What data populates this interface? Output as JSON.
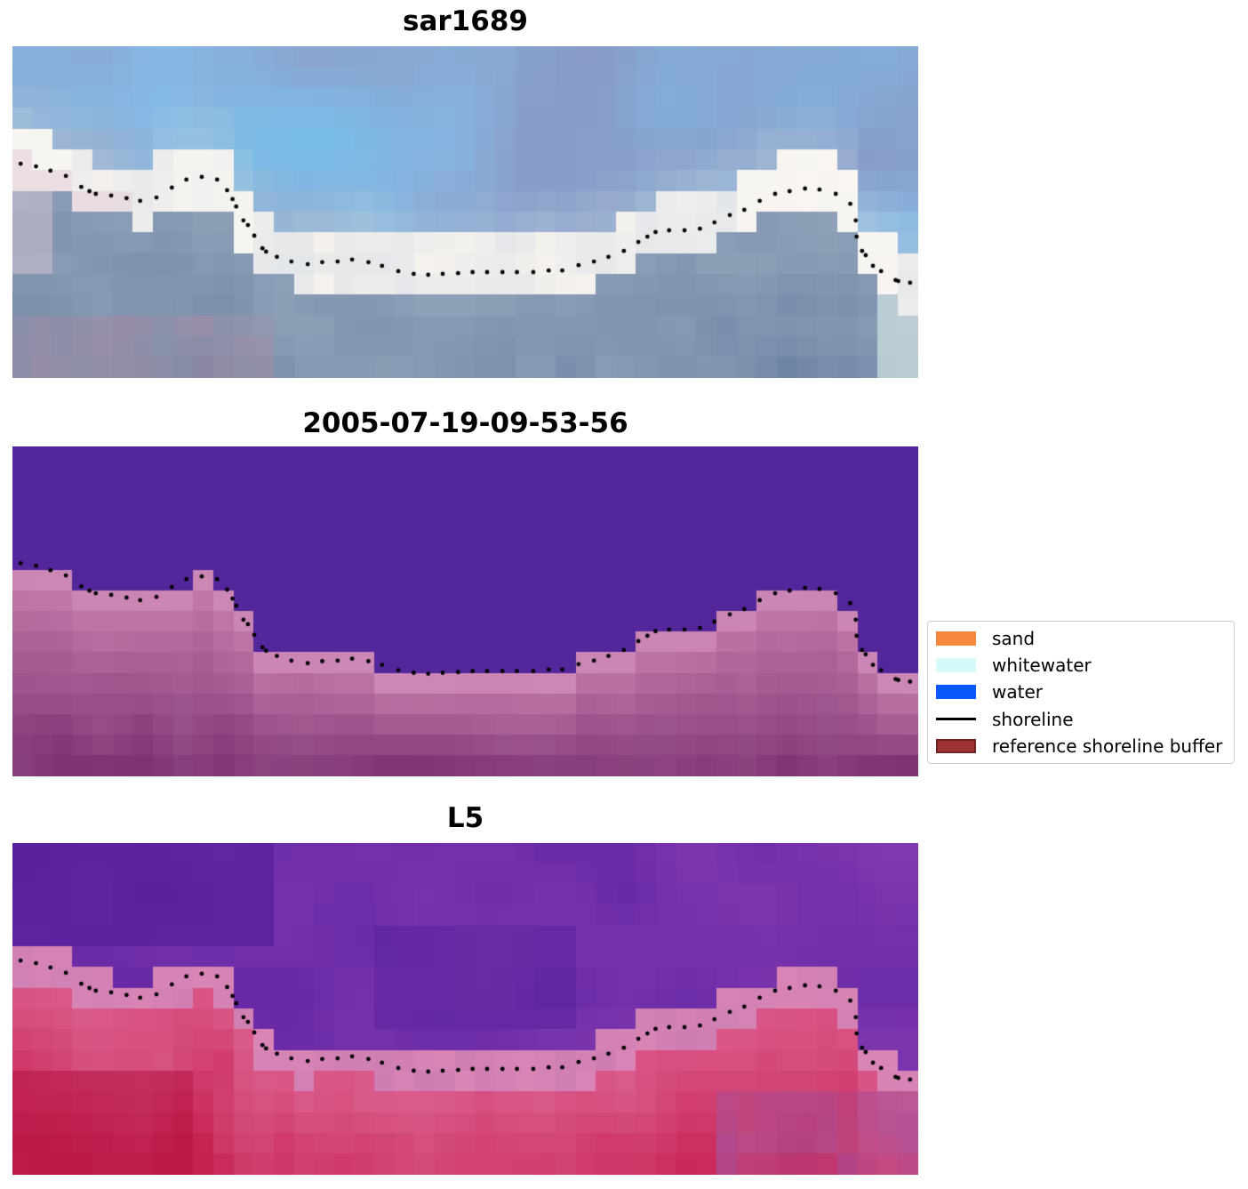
{
  "figure": {
    "background": "#FFFFFF",
    "grid_cols": 45
  },
  "panels": [
    {
      "id": "sar1689",
      "title": "sar1689",
      "type": "sar",
      "palette": {
        "skyA": "#8B9EC9",
        "skyB": "#85BBE7",
        "cyanBlob": "#74C3EE",
        "lavender": "#8395C2",
        "nearBand": "#BFD4DC",
        "bandA": "#E3E6EA",
        "bandB": "#F7F3ED",
        "bandWhite": "#FAF7F2",
        "bandPink": "#DFC9D6",
        "seaA": "#8497B2",
        "seaB": "#68809F",
        "seaLight": "#A9B8C8",
        "mauve": "#A78CA8",
        "cliffCyan": "#DCEEE8"
      }
    },
    {
      "id": "classified",
      "title": "2005-07-19-09-53-56",
      "type": "classified",
      "palette": {
        "water": "#54269B",
        "landTop": "#C97EAE",
        "landLight": "#CE92BE",
        "landBottom": "#7C3170"
      }
    },
    {
      "id": "l5",
      "title": "L5",
      "type": "l5",
      "palette": {
        "waterA": "#5A20A1",
        "waterB": "#7F38AE",
        "waterDark": "#4B1795",
        "band": "#DA86B6",
        "bandMix": "#B36BAE",
        "landA": "#D85082",
        "landB": "#C31747",
        "landLight": "#E18FB4",
        "landDark": "#B00C3A",
        "magenta": "#A4519E"
      }
    }
  ],
  "shoreline": {
    "color": "#000000",
    "dot_radius": 2.4,
    "points": [
      [
        0.009,
        0.354
      ],
      [
        0.026,
        0.362
      ],
      [
        0.042,
        0.375
      ],
      [
        0.059,
        0.391
      ],
      [
        0.076,
        0.424
      ],
      [
        0.085,
        0.437
      ],
      [
        0.092,
        0.445
      ],
      [
        0.109,
        0.45
      ],
      [
        0.126,
        0.458
      ],
      [
        0.141,
        0.466
      ],
      [
        0.159,
        0.456
      ],
      [
        0.176,
        0.426
      ],
      [
        0.192,
        0.402
      ],
      [
        0.209,
        0.394
      ],
      [
        0.226,
        0.402
      ],
      [
        0.237,
        0.434
      ],
      [
        0.243,
        0.461
      ],
      [
        0.247,
        0.483
      ],
      [
        0.255,
        0.525
      ],
      [
        0.26,
        0.539
      ],
      [
        0.267,
        0.571
      ],
      [
        0.276,
        0.609
      ],
      [
        0.28,
        0.619
      ],
      [
        0.292,
        0.635
      ],
      [
        0.308,
        0.649
      ],
      [
        0.326,
        0.657
      ],
      [
        0.342,
        0.651
      ],
      [
        0.359,
        0.649
      ],
      [
        0.375,
        0.643
      ],
      [
        0.393,
        0.651
      ],
      [
        0.408,
        0.662
      ],
      [
        0.426,
        0.678
      ],
      [
        0.443,
        0.686
      ],
      [
        0.459,
        0.689
      ],
      [
        0.475,
        0.686
      ],
      [
        0.492,
        0.684
      ],
      [
        0.508,
        0.681
      ],
      [
        0.524,
        0.681
      ],
      [
        0.541,
        0.681
      ],
      [
        0.557,
        0.681
      ],
      [
        0.575,
        0.681
      ],
      [
        0.592,
        0.676
      ],
      [
        0.607,
        0.676
      ],
      [
        0.625,
        0.66
      ],
      [
        0.642,
        0.649
      ],
      [
        0.658,
        0.635
      ],
      [
        0.675,
        0.617
      ],
      [
        0.691,
        0.59
      ],
      [
        0.701,
        0.574
      ],
      [
        0.71,
        0.56
      ],
      [
        0.725,
        0.555
      ],
      [
        0.742,
        0.555
      ],
      [
        0.759,
        0.55
      ],
      [
        0.775,
        0.531
      ],
      [
        0.792,
        0.509
      ],
      [
        0.808,
        0.493
      ],
      [
        0.825,
        0.466
      ],
      [
        0.842,
        0.445
      ],
      [
        0.858,
        0.437
      ],
      [
        0.875,
        0.429
      ],
      [
        0.891,
        0.432
      ],
      [
        0.909,
        0.445
      ],
      [
        0.925,
        0.475
      ],
      [
        0.931,
        0.525
      ],
      [
        0.932,
        0.574
      ],
      [
        0.938,
        0.617
      ],
      [
        0.942,
        0.63
      ],
      [
        0.95,
        0.662
      ],
      [
        0.959,
        0.678
      ],
      [
        0.975,
        0.705
      ],
      [
        0.978,
        0.708
      ],
      [
        0.991,
        0.713
      ]
    ]
  },
  "legend": {
    "background": "#FFFFFF",
    "border_color": "#CBCBCB",
    "text_color": "#000000",
    "items": [
      {
        "label": "sand",
        "kind": "patch",
        "color": "#F5873E"
      },
      {
        "label": "whitewater",
        "kind": "patch",
        "color": "#D6FAFA"
      },
      {
        "label": "water",
        "kind": "patch",
        "color": "#0A57FB"
      },
      {
        "label": "shoreline",
        "kind": "line",
        "color": "#000000"
      },
      {
        "label": "reference shoreline buffer",
        "kind": "patch",
        "color": "#9E3232",
        "border": "#6F2323"
      }
    ]
  }
}
